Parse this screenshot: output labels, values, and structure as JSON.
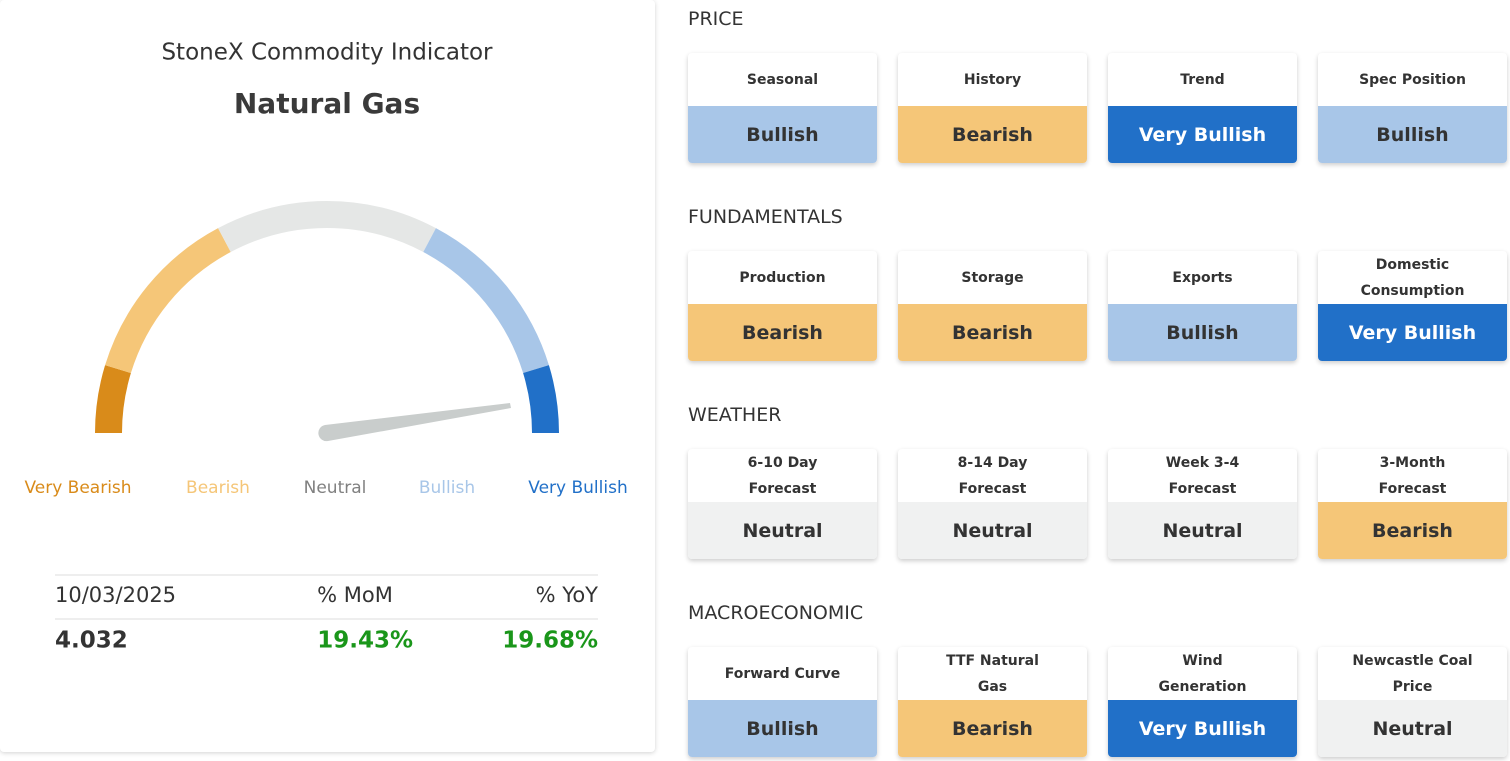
{
  "header": {
    "title": "StoneX Commodity Indicator",
    "subtitle": "Natural Gas"
  },
  "gauge": {
    "labels": [
      "Very Bearish",
      "Bearish",
      "Neutral",
      "Bullish",
      "Very Bullish"
    ]
  },
  "stats": {
    "headers": [
      "10/03/2025",
      "% MoM",
      "% YoY"
    ],
    "values": [
      "4.032",
      "19.43%",
      "19.68%"
    ]
  },
  "sections": [
    {
      "title": "PRICE",
      "cards": [
        {
          "label": "Seasonal",
          "signal": "Bullish"
        },
        {
          "label": "History",
          "signal": "Bearish"
        },
        {
          "label": "Trend",
          "signal": "Very Bullish"
        },
        {
          "label": "Spec Position",
          "signal": "Bullish"
        }
      ]
    },
    {
      "title": "FUNDAMENTALS",
      "cards": [
        {
          "label": "Production",
          "signal": "Bearish"
        },
        {
          "label": "Storage",
          "signal": "Bearish"
        },
        {
          "label": "Exports",
          "signal": "Bullish"
        },
        {
          "label": "Domestic Consumption",
          "signal": "Very Bullish"
        }
      ]
    },
    {
      "title": "WEATHER",
      "cards": [
        {
          "label": "6-10 Day Forecast",
          "signal": "Neutral"
        },
        {
          "label": "8-14 Day Forecast",
          "signal": "Neutral"
        },
        {
          "label": "Week 3-4 Forecast",
          "signal": "Neutral"
        },
        {
          "label": "3-Month Forecast",
          "signal": "Bearish"
        }
      ]
    },
    {
      "title": "MACROECONOMIC",
      "cards": [
        {
          "label": "Forward Curve",
          "signal": "Bullish"
        },
        {
          "label": "TTF Natural Gas",
          "signal": "Bearish"
        },
        {
          "label": "Wind Generation",
          "signal": "Very Bullish"
        },
        {
          "label": "Newcastle Coal Price",
          "signal": "Neutral"
        }
      ]
    }
  ]
}
